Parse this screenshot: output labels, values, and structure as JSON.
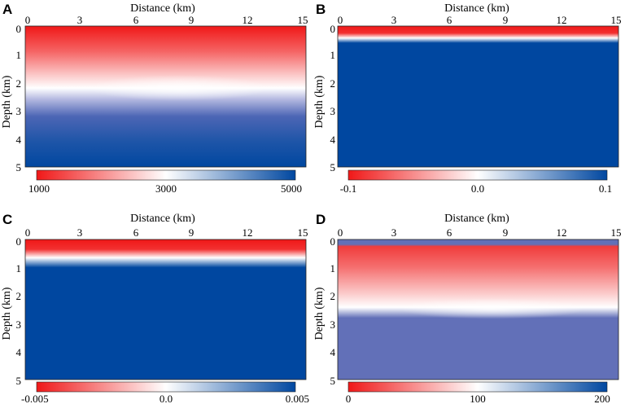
{
  "chart_data": [
    {
      "panel": "A",
      "type": "heatmap",
      "xlabel": "Distance (km)",
      "ylabel": "Depth (km)",
      "xlim": [
        0,
        15
      ],
      "ylim": [
        0,
        5
      ],
      "x_ticks": [
        "0",
        "3",
        "6",
        "9",
        "12",
        "15"
      ],
      "y_ticks": [
        "0",
        "1",
        "2",
        "3",
        "4",
        "5"
      ],
      "colorbar": {
        "min": 1000,
        "max": 5000,
        "ticks": [
          "1000",
          "3000",
          "5000"
        ]
      },
      "field": "smooth vertical gradient: red (1000) at surface, white (3000) near 2.2 km depth (slightly deeper near 7.5 km distance), blue (5000) below 4 km"
    },
    {
      "panel": "B",
      "type": "heatmap",
      "xlabel": "Distance (km)",
      "ylabel": "Depth (km)",
      "xlim": [
        0,
        15
      ],
      "ylim": [
        0,
        5
      ],
      "x_ticks": [
        "0",
        "3",
        "6",
        "9",
        "12",
        "15"
      ],
      "y_ticks": [
        "0",
        "1",
        "2",
        "3",
        "4",
        "5"
      ],
      "colorbar": {
        "min": -0.1,
        "max": 0.1,
        "ticks": [
          "-0.1",
          "0.0",
          "0.1"
        ]
      },
      "field": "red (-0.1) in top 0.3 km, white (0.0) near 0.4 km, blue (0.1) below 0.6 km"
    },
    {
      "panel": "C",
      "type": "heatmap",
      "xlabel": "Distance (km)",
      "ylabel": "Depth (km)",
      "xlim": [
        0,
        15
      ],
      "ylim": [
        0,
        5
      ],
      "x_ticks": [
        "0",
        "3",
        "6",
        "9",
        "12",
        "15"
      ],
      "y_ticks": [
        "0",
        "1",
        "2",
        "3",
        "4",
        "5"
      ],
      "colorbar": {
        "min": -0.005,
        "max": 0.005,
        "ticks": [
          "-0.005",
          "0.0",
          "0.005"
        ]
      },
      "field": "red (-0.005) in top 0.4 km, white (0.0) near 0.7 km, blue (0.005) below 1 km"
    },
    {
      "panel": "D",
      "type": "heatmap",
      "xlabel": "Distance (km)",
      "ylabel": "Depth (km)",
      "xlim": [
        0,
        15
      ],
      "ylim": [
        0,
        5
      ],
      "x_ticks": [
        "0",
        "3",
        "6",
        "9",
        "12",
        "15"
      ],
      "y_ticks": [
        "0",
        "1",
        "2",
        "3",
        "4",
        "5"
      ],
      "colorbar": {
        "min": 0,
        "max": 200,
        "ticks": [
          "0",
          "100",
          "200"
        ]
      },
      "field": "thin blue band at surface (0-0.2 km), red decreasing to white near 2.4 km (slightly deeper near 7.5 km distance), uniform medium blue below 2.8 km"
    }
  ],
  "colors": {
    "red": "#f01818",
    "white": "#ffffff",
    "blue": "#0047a0",
    "medium_blue": "#6270b8"
  }
}
